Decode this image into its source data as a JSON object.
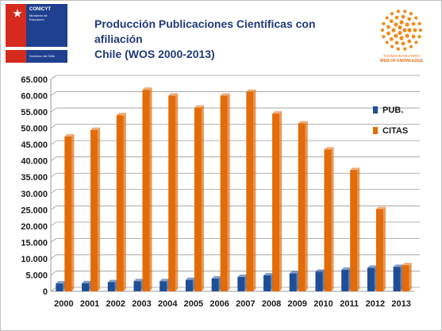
{
  "header": {
    "logo": {
      "org": "CONICYT",
      "sub1": "Ministerio de",
      "sub2": "Educación",
      "gov": "Gobierno de Chile"
    },
    "title_line1": "Producción Publicaciones Científicas con afiliación",
    "title_line2": "Chile (WOS 2000-2013)",
    "wok": {
      "line1": "THOMSON REUTERS",
      "line2": "WEB OF KNOWLEDGE"
    }
  },
  "colors": {
    "pub": "#1f4e96",
    "citas": "#e26b0a",
    "grid": "#9a9a9a"
  },
  "chart_data": {
    "type": "bar",
    "title": "Producción Publicaciones Científicas con afiliación Chile (WOS 2000-2013)",
    "categories": [
      "2000",
      "2001",
      "2002",
      "2003",
      "2004",
      "2005",
      "2006",
      "2007",
      "2008",
      "2009",
      "2010",
      "2011",
      "2012",
      "2013"
    ],
    "series": [
      {
        "name": "PUB.",
        "values": [
          2400,
          2500,
          2800,
          3100,
          3100,
          3500,
          3900,
          4400,
          4900,
          5500,
          6000,
          6600,
          7200,
          7500
        ]
      },
      {
        "name": "CITAS",
        "values": [
          47500,
          49500,
          54000,
          61800,
          60000,
          56300,
          60000,
          61200,
          54500,
          51500,
          43500,
          37200,
          25200,
          8000
        ]
      }
    ],
    "ylim": [
      0,
      65000
    ],
    "yticks": [
      "0",
      "5.000",
      "10.000",
      "15.000",
      "20.000",
      "25.000",
      "30.000",
      "35.000",
      "40.000",
      "45.000",
      "50.000",
      "55.000",
      "60.000",
      "65.000"
    ],
    "grid": true,
    "legend": "right"
  }
}
